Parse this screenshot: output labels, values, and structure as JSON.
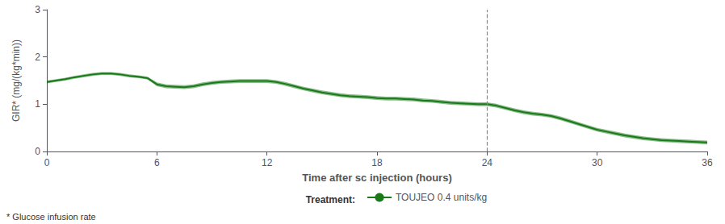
{
  "chart_data": {
    "type": "line",
    "xlabel": "Time after sc injection (hours)",
    "ylabel": "GIR* (mg/(kg*min))",
    "footnote": "* Glucose infusion rate",
    "legend_title": "Treatment:",
    "legend": "bottom",
    "grid": false,
    "xlim": [
      0,
      36
    ],
    "ylim": [
      0,
      3
    ],
    "xticks": [
      0,
      6,
      12,
      18,
      24,
      30,
      36
    ],
    "yticks": [
      0,
      1,
      2,
      3
    ],
    "x": [
      0,
      0.5,
      1,
      1.5,
      2,
      2.5,
      3,
      3.5,
      4,
      4.5,
      5,
      5.5,
      6,
      6.5,
      7,
      7.5,
      8,
      8.5,
      9,
      9.5,
      10,
      10.5,
      11,
      11.5,
      12,
      12.5,
      13,
      13.5,
      14,
      14.5,
      15,
      15.5,
      16,
      16.5,
      17,
      17.5,
      18,
      18.5,
      19,
      19.5,
      20,
      20.5,
      21,
      21.5,
      22,
      22.5,
      23,
      23.5,
      24,
      24.5,
      25,
      25.5,
      26,
      26.5,
      27,
      27.5,
      28,
      28.5,
      29,
      29.5,
      30,
      30.5,
      31,
      31.5,
      32,
      32.5,
      33,
      33.5,
      34,
      34.5,
      35,
      35.5,
      36
    ],
    "series": [
      {
        "name": "TOUJEO 0.4 units/kg",
        "color": "#1a7a1a",
        "values": [
          1.47,
          1.5,
          1.53,
          1.57,
          1.6,
          1.63,
          1.65,
          1.65,
          1.63,
          1.6,
          1.58,
          1.55,
          1.42,
          1.38,
          1.37,
          1.36,
          1.38,
          1.42,
          1.45,
          1.47,
          1.48,
          1.49,
          1.49,
          1.49,
          1.49,
          1.47,
          1.43,
          1.38,
          1.33,
          1.29,
          1.25,
          1.22,
          1.19,
          1.17,
          1.16,
          1.15,
          1.13,
          1.12,
          1.12,
          1.11,
          1.1,
          1.08,
          1.07,
          1.05,
          1.03,
          1.02,
          1.01,
          1.0,
          1.0,
          0.97,
          0.92,
          0.87,
          0.83,
          0.8,
          0.78,
          0.75,
          0.7,
          0.64,
          0.58,
          0.52,
          0.46,
          0.42,
          0.38,
          0.34,
          0.31,
          0.28,
          0.26,
          0.24,
          0.23,
          0.22,
          0.21,
          0.2,
          0.19
        ],
        "upper": [
          1.5,
          1.53,
          1.56,
          1.6,
          1.63,
          1.66,
          1.68,
          1.68,
          1.66,
          1.63,
          1.61,
          1.58,
          1.46,
          1.42,
          1.41,
          1.4,
          1.42,
          1.46,
          1.49,
          1.51,
          1.52,
          1.53,
          1.53,
          1.53,
          1.53,
          1.51,
          1.47,
          1.42,
          1.37,
          1.33,
          1.29,
          1.26,
          1.23,
          1.21,
          1.2,
          1.19,
          1.17,
          1.16,
          1.16,
          1.15,
          1.14,
          1.12,
          1.11,
          1.09,
          1.07,
          1.06,
          1.05,
          1.04,
          1.04,
          1.01,
          0.96,
          0.91,
          0.87,
          0.84,
          0.82,
          0.79,
          0.74,
          0.68,
          0.62,
          0.56,
          0.5,
          0.46,
          0.42,
          0.38,
          0.35,
          0.32,
          0.3,
          0.28,
          0.27,
          0.26,
          0.25,
          0.24,
          0.23
        ],
        "lower": [
          1.44,
          1.47,
          1.5,
          1.54,
          1.57,
          1.6,
          1.62,
          1.62,
          1.6,
          1.57,
          1.55,
          1.52,
          1.38,
          1.34,
          1.33,
          1.32,
          1.34,
          1.38,
          1.41,
          1.43,
          1.44,
          1.45,
          1.45,
          1.45,
          1.45,
          1.43,
          1.39,
          1.34,
          1.29,
          1.25,
          1.21,
          1.18,
          1.15,
          1.13,
          1.12,
          1.11,
          1.09,
          1.08,
          1.08,
          1.07,
          1.06,
          1.04,
          1.03,
          1.01,
          0.99,
          0.98,
          0.97,
          0.96,
          0.96,
          0.93,
          0.88,
          0.83,
          0.79,
          0.76,
          0.74,
          0.71,
          0.66,
          0.6,
          0.54,
          0.48,
          0.42,
          0.38,
          0.34,
          0.3,
          0.27,
          0.24,
          0.22,
          0.2,
          0.19,
          0.18,
          0.17,
          0.16,
          0.15
        ]
      }
    ],
    "vline": {
      "x": 24,
      "color": "#888888",
      "line_style": "dashed"
    }
  }
}
